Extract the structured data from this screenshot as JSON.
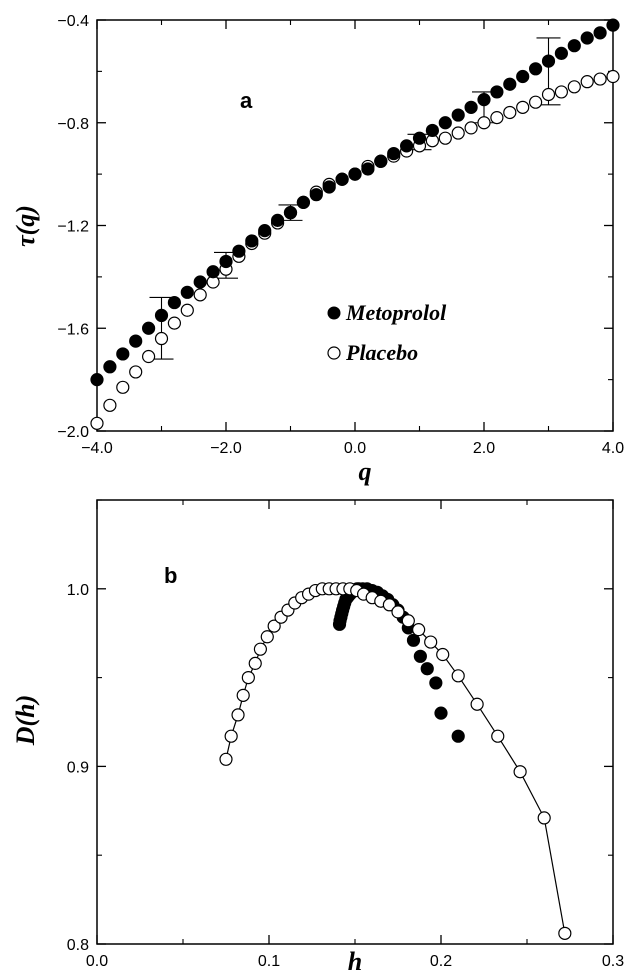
{
  "chart_data": [
    {
      "type": "scatter",
      "panel_label": "a",
      "xlabel": "q",
      "ylabel": "τ(q)",
      "xlim": [
        -4.0,
        4.0
      ],
      "ylim": [
        -2.0,
        -0.4
      ],
      "xticks": [
        "−4.0",
        "−2.0",
        "0.0",
        "2.0",
        "4.0"
      ],
      "yticks": [
        "−2.0",
        "−1.6",
        "−1.2",
        "−0.8",
        "−0.4"
      ],
      "xtick_values": [
        -4,
        -2,
        0,
        2,
        4
      ],
      "ytick_values": [
        -2.0,
        -1.6,
        -1.2,
        -0.8,
        -0.4
      ],
      "legend_position": "bottom-right",
      "series": [
        {
          "name": "Metoprolol",
          "marker": "filled-circle",
          "x": [
            -4.0,
            -3.8,
            -3.6,
            -3.4,
            -3.2,
            -3.0,
            -2.8,
            -2.6,
            -2.4,
            -2.2,
            -2.0,
            -1.8,
            -1.6,
            -1.4,
            -1.2,
            -1.0,
            -0.8,
            -0.6,
            -0.4,
            -0.2,
            0.0,
            0.2,
            0.4,
            0.6,
            0.8,
            1.0,
            1.2,
            1.4,
            1.6,
            1.8,
            2.0,
            2.2,
            2.4,
            2.6,
            2.8,
            3.0,
            3.2,
            3.4,
            3.6,
            3.8,
            4.0
          ],
          "y": [
            -1.8,
            -1.75,
            -1.7,
            -1.65,
            -1.6,
            -1.55,
            -1.5,
            -1.46,
            -1.42,
            -1.38,
            -1.34,
            -1.3,
            -1.26,
            -1.22,
            -1.18,
            -1.15,
            -1.11,
            -1.08,
            -1.05,
            -1.02,
            -1.0,
            -0.98,
            -0.95,
            -0.92,
            -0.89,
            -0.86,
            -0.83,
            -0.8,
            -0.77,
            -0.74,
            -0.71,
            -0.68,
            -0.65,
            -0.62,
            -0.59,
            -0.56,
            -0.53,
            -0.5,
            -0.47,
            -0.45,
            -0.42
          ]
        },
        {
          "name": "Placebo",
          "marker": "open-circle",
          "x": [
            -4.0,
            -3.8,
            -3.6,
            -3.4,
            -3.2,
            -3.0,
            -2.8,
            -2.6,
            -2.4,
            -2.2,
            -2.0,
            -1.8,
            -1.6,
            -1.4,
            -1.2,
            -1.0,
            -0.8,
            -0.6,
            -0.4,
            -0.2,
            0.0,
            0.2,
            0.4,
            0.6,
            0.8,
            1.0,
            1.2,
            1.4,
            1.6,
            1.8,
            2.0,
            2.2,
            2.4,
            2.6,
            2.8,
            3.0,
            3.2,
            3.4,
            3.6,
            3.8,
            4.0
          ],
          "y": [
            -1.97,
            -1.9,
            -1.83,
            -1.77,
            -1.71,
            -1.64,
            -1.58,
            -1.53,
            -1.47,
            -1.42,
            -1.37,
            -1.32,
            -1.27,
            -1.23,
            -1.19,
            -1.15,
            -1.11,
            -1.07,
            -1.04,
            -1.02,
            -1.0,
            -0.97,
            -0.95,
            -0.93,
            -0.91,
            -0.89,
            -0.87,
            -0.86,
            -0.84,
            -0.82,
            -0.8,
            -0.78,
            -0.76,
            -0.74,
            -0.72,
            -0.69,
            -0.68,
            -0.66,
            -0.64,
            -0.63,
            -0.62
          ]
        }
      ],
      "error_bars": [
        {
          "x": -3.0,
          "y": -1.6,
          "err": 0.12
        },
        {
          "x": -2.0,
          "y": -1.355,
          "err": 0.05
        },
        {
          "x": -1.0,
          "y": -1.15,
          "err": 0.03
        },
        {
          "x": 1.0,
          "y": -0.875,
          "err": 0.03
        },
        {
          "x": 2.0,
          "y": -0.74,
          "err": 0.06
        },
        {
          "x": 3.0,
          "y": -0.6,
          "err": 0.13
        }
      ]
    },
    {
      "type": "line",
      "panel_label": "b",
      "xlabel": "h",
      "ylabel": "D(h)",
      "xlim": [
        0.0,
        0.3
      ],
      "ylim": [
        0.8,
        1.05
      ],
      "xticks": [
        "0.0",
        "0.1",
        "0.2",
        "0.3"
      ],
      "yticks": [
        "0.8",
        "0.9",
        "1.0"
      ],
      "xtick_values": [
        0.0,
        0.1,
        0.2,
        0.3
      ],
      "ytick_values": [
        0.8,
        0.9,
        1.0
      ],
      "series": [
        {
          "name": "Metoprolol",
          "marker": "filled-circle",
          "line": false,
          "x": [
            0.141,
            0.1413,
            0.1418,
            0.1423,
            0.1428,
            0.1434,
            0.144,
            0.1447,
            0.1455,
            0.1463,
            0.1472,
            0.1481,
            0.1491,
            0.1501,
            0.1512,
            0.1523,
            0.1545,
            0.157,
            0.16,
            0.163,
            0.166,
            0.169,
            0.172,
            0.175,
            0.178,
            0.181,
            0.184,
            0.188,
            0.192,
            0.197,
            0.2,
            0.21
          ],
          "y": [
            0.98,
            0.982,
            0.984,
            0.986,
            0.988,
            0.99,
            0.992,
            0.994,
            0.995,
            0.996,
            0.997,
            0.998,
            0.999,
            0.9995,
            1.0,
            1.0,
            1.0,
            1.0,
            0.999,
            0.998,
            0.996,
            0.994,
            0.991,
            0.988,
            0.984,
            0.978,
            0.971,
            0.962,
            0.955,
            0.947,
            0.93,
            0.917
          ]
        },
        {
          "name": "Placebo",
          "marker": "open-circle",
          "line": true,
          "x": [
            0.075,
            0.078,
            0.082,
            0.085,
            0.088,
            0.092,
            0.095,
            0.099,
            0.103,
            0.107,
            0.111,
            0.115,
            0.119,
            0.123,
            0.127,
            0.131,
            0.135,
            0.139,
            0.143,
            0.147,
            0.151,
            0.155,
            0.16,
            0.165,
            0.17,
            0.175,
            0.181,
            0.187,
            0.194,
            0.201,
            0.21,
            0.221,
            0.233,
            0.246,
            0.26,
            0.272
          ],
          "y": [
            0.904,
            0.917,
            0.929,
            0.94,
            0.95,
            0.958,
            0.966,
            0.973,
            0.979,
            0.984,
            0.988,
            0.992,
            0.995,
            0.997,
            0.999,
            1.0,
            1.0,
            1.0,
            1.0,
            1.0,
            0.999,
            0.997,
            0.995,
            0.993,
            0.991,
            0.987,
            0.982,
            0.977,
            0.97,
            0.963,
            0.951,
            0.935,
            0.917,
            0.897,
            0.871,
            0.806
          ]
        }
      ]
    }
  ]
}
